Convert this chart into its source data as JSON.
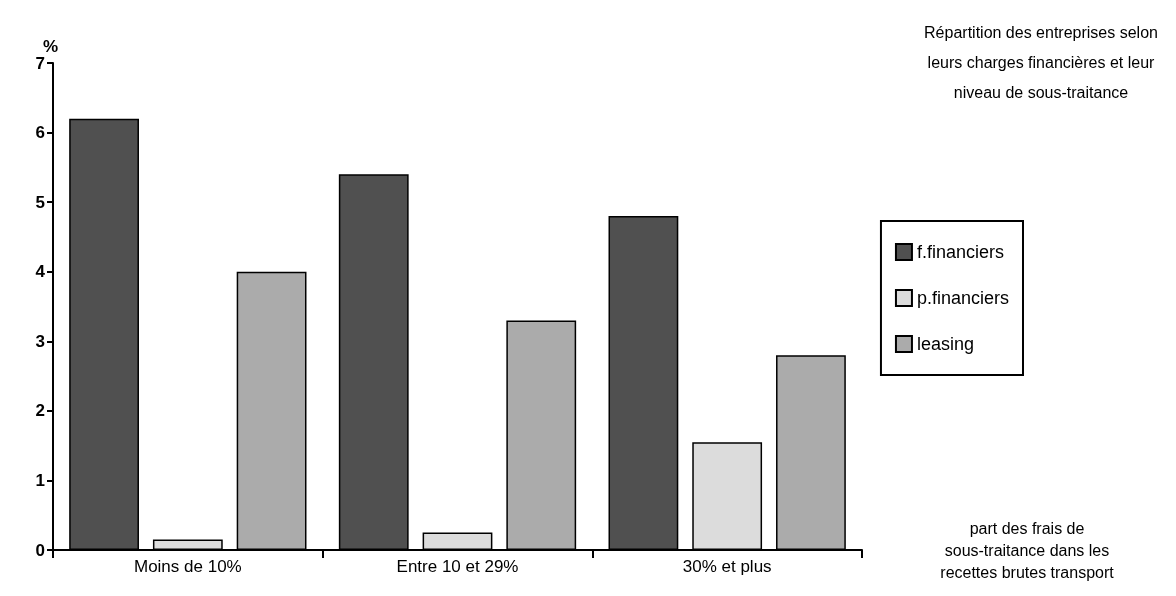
{
  "chart_data": {
    "type": "bar",
    "title": "Répartition des entreprises selon\nleurs charges financières et leur\nniveau de sous-traitance",
    "xlabel": "part des frais de\nsous-traitance dans les\nrecettes brutes transport",
    "ylabel": "%",
    "categories": [
      "Moins de 10%",
      "Entre 10 et 29%",
      "30% et plus"
    ],
    "series": [
      {
        "name": "f.financiers",
        "color": "#505050",
        "values": [
          6.2,
          5.4,
          4.8
        ]
      },
      {
        "name": "p.financiers",
        "color": "#dcdcdc",
        "values": [
          0.15,
          0.25,
          1.55
        ]
      },
      {
        "name": "leasing",
        "color": "#ababab",
        "values": [
          4.0,
          3.3,
          2.8
        ]
      }
    ],
    "ylim": [
      0,
      7
    ],
    "yticks": [
      0,
      1,
      2,
      3,
      4,
      5,
      6,
      7
    ],
    "grid": false,
    "legend": "right"
  }
}
